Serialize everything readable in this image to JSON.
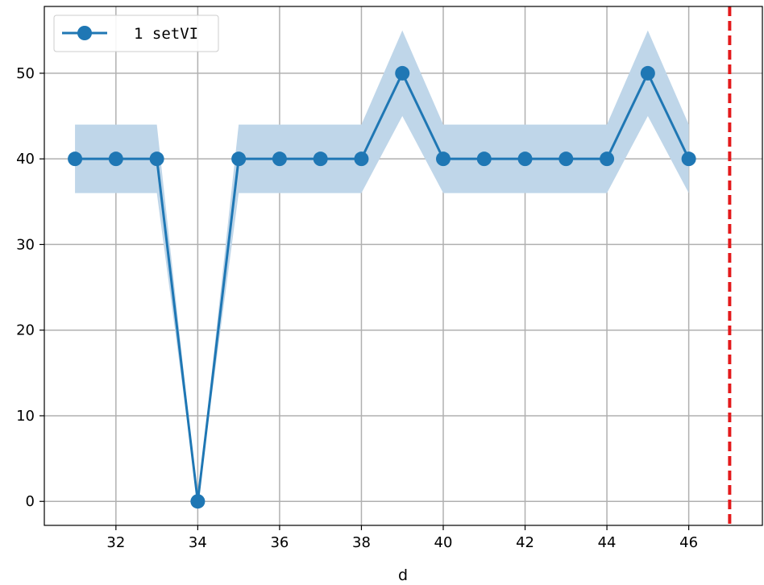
{
  "chart_data": {
    "type": "line",
    "title": "",
    "xlabel": "d",
    "ylabel": "",
    "xlim": [
      30.25,
      47.8
    ],
    "ylim": [
      -2.8,
      57.8
    ],
    "xticks": [
      32,
      34,
      36,
      38,
      40,
      42,
      44,
      46
    ],
    "yticks": [
      0,
      10,
      20,
      30,
      40,
      50
    ],
    "grid": true,
    "legend_position": "top-left",
    "series": [
      {
        "name": "1 setVI",
        "color": "#1f77b4",
        "marker": "circle",
        "x": [
          31,
          32,
          33,
          34,
          35,
          36,
          37,
          38,
          39,
          40,
          41,
          42,
          43,
          44,
          45,
          46
        ],
        "y": [
          40,
          40,
          40,
          0,
          40,
          40,
          40,
          40,
          50,
          40,
          40,
          40,
          40,
          40,
          50,
          40
        ],
        "band_lower": [
          36,
          36,
          36,
          0,
          36,
          36,
          36,
          36,
          45,
          36,
          36,
          36,
          36,
          36,
          45,
          36
        ],
        "band_upper": [
          44,
          44,
          44,
          0,
          44,
          44,
          44,
          44,
          55,
          44,
          44,
          44,
          44,
          44,
          55,
          44
        ],
        "band_color": "#bfd6e9"
      }
    ],
    "annotations": [
      {
        "type": "vertical-dashed-line",
        "x": 47,
        "color": "#e31a1c"
      }
    ]
  }
}
